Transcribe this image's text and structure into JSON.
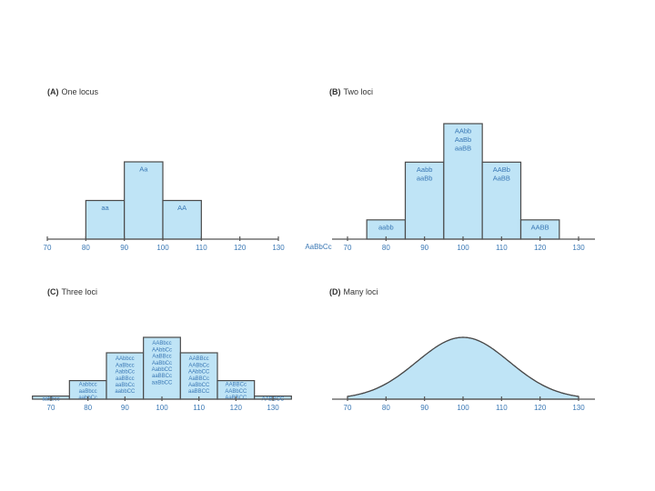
{
  "chart_data": [
    {
      "id": "A",
      "type": "bar",
      "title_letter": "(A)",
      "title_text": "One locus",
      "x_ticks": [
        70,
        80,
        90,
        100,
        110,
        120,
        130
      ],
      "xlim": [
        70,
        130
      ],
      "ylim": [
        0,
        4
      ],
      "bar_width": 10,
      "bars": [
        {
          "center": 85,
          "value": 1,
          "label": [
            "aa"
          ]
        },
        {
          "center": 95,
          "value": 2,
          "label": [
            "Aa"
          ]
        },
        {
          "center": 105,
          "value": 1,
          "label": [
            "AA"
          ]
        }
      ]
    },
    {
      "id": "B",
      "type": "bar",
      "title_letter": "(B)",
      "title_text": "Two loci",
      "extra_axis_label": "AaBbCc",
      "x_ticks": [
        70,
        80,
        90,
        100,
        110,
        120,
        130
      ],
      "xlim": [
        67,
        133
      ],
      "ylim": [
        0,
        6
      ],
      "bar_width": 10,
      "bars": [
        {
          "center": 80,
          "value": 1,
          "label": [
            "aabb"
          ]
        },
        {
          "center": 90,
          "value": 4,
          "label": [
            "Aabb",
            "aaBb"
          ]
        },
        {
          "center": 100,
          "value": 6,
          "label": [
            "AAbb",
            "AaBb",
            "aaBB"
          ]
        },
        {
          "center": 110,
          "value": 4,
          "label": [
            "AABb",
            "AaBB"
          ]
        },
        {
          "center": 120,
          "value": 1,
          "label": [
            "AABB"
          ]
        }
      ]
    },
    {
      "id": "C",
      "type": "bar",
      "title_letter": "(C)",
      "title_text": "Three loci",
      "x_ticks": [
        70,
        80,
        90,
        100,
        110,
        120,
        130
      ],
      "xlim": [
        65,
        135
      ],
      "ylim": [
        0,
        20
      ],
      "bar_width": 10,
      "bars": [
        {
          "center": 70,
          "value": 1,
          "label": [
            "aabbcc"
          ]
        },
        {
          "center": 80,
          "value": 6,
          "label": [
            "Aabbcc",
            "aaBbcc",
            "aabbCc"
          ]
        },
        {
          "center": 90,
          "value": 15,
          "label": [
            "AAbbcc",
            "AaBbcc",
            "AabbCc",
            "aaBBcc",
            "aaBbCc",
            "aabbCC"
          ]
        },
        {
          "center": 100,
          "value": 20,
          "label": [
            "AABbcc",
            "AAbbCc",
            "AaBBcc",
            "AaBbCc",
            "AabbCC",
            "aaBBCc",
            "aaBbCC"
          ]
        },
        {
          "center": 110,
          "value": 15,
          "label": [
            "AABBcc",
            "AABbCc",
            "AAbbCC",
            "AaBBCc",
            "AaBbCC",
            "aaBBCC"
          ]
        },
        {
          "center": 120,
          "value": 6,
          "label": [
            "AABBCc",
            "AABbCC",
            "AaBBCC"
          ]
        },
        {
          "center": 130,
          "value": 1,
          "label": [
            "AABBCC"
          ]
        }
      ]
    },
    {
      "id": "D",
      "type": "area",
      "title_letter": "(D)",
      "title_text": "Many loci",
      "x_ticks": [
        70,
        80,
        90,
        100,
        110,
        120,
        130
      ],
      "xlim": [
        67,
        133
      ],
      "curve": {
        "kind": "normal",
        "mean": 100,
        "sd": 12,
        "x_range": [
          70,
          130
        ]
      }
    }
  ]
}
